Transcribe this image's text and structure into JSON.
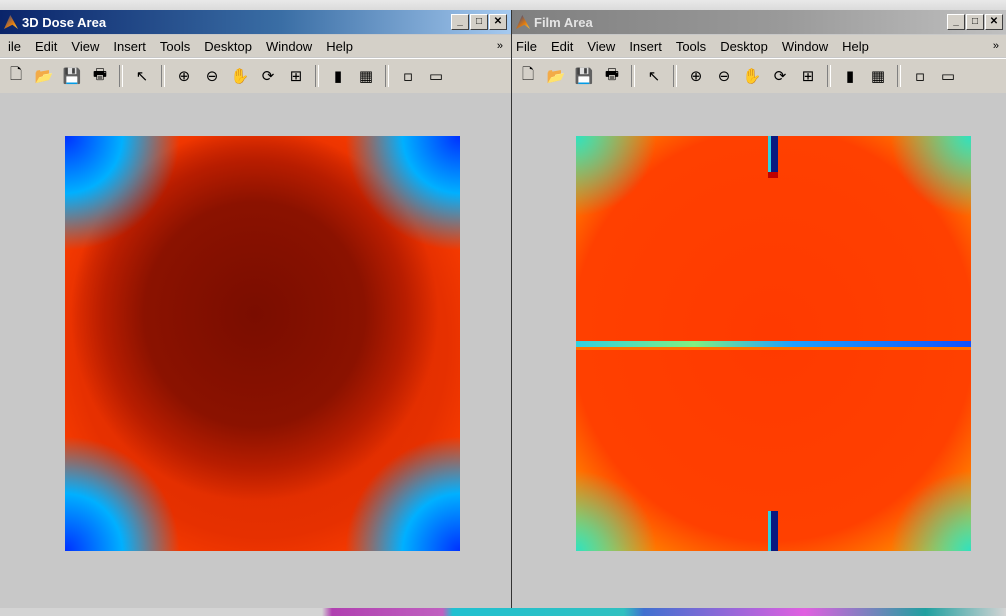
{
  "windows": {
    "dose": {
      "title": "3D Dose Area",
      "menu": [
        "ile",
        "Edit",
        "View",
        "Insert",
        "Tools",
        "Desktop",
        "Window",
        "Help"
      ],
      "menu_more": "»"
    },
    "film": {
      "title": "Film Area",
      "menu": [
        "File",
        "Edit",
        "View",
        "Insert",
        "Tools",
        "Desktop",
        "Window",
        "Help"
      ],
      "menu_more": "»"
    }
  },
  "window_buttons": {
    "minimize": "_",
    "maximize": "□",
    "close": "✕"
  },
  "toolbar_icons": {
    "new": "🗋",
    "open": "📂",
    "save": "💾",
    "print": "🖶",
    "select": "↖",
    "zoom_in": "⊕",
    "zoom_out": "⊖",
    "pan": "✋",
    "rotate": "⟳",
    "data_cursor": "⊞",
    "colorbar": "▮",
    "legend": "▦",
    "hide_plot": "▫",
    "show_plot": "▭"
  },
  "colors": {
    "active_title": "#0a246a",
    "inactive_title": "#7f7f7f",
    "figure_bg": "#c8c8c8"
  }
}
